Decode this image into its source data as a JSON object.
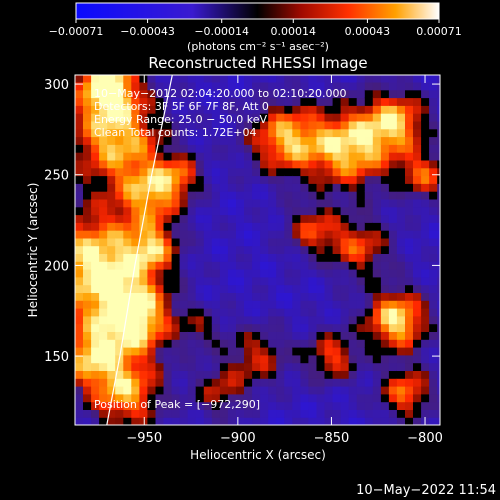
{
  "chart_data": {
    "type": "heatmap",
    "title": "Reconstructed RHESSI Image",
    "xlabel": "Heliocentric X (arcsec)",
    "ylabel": "Heliocentric Y (arcsec)",
    "xlim": [
      -987,
      -792
    ],
    "ylim": [
      112,
      305
    ],
    "x_ticks": [
      -950,
      -900,
      -850,
      -800
    ],
    "x_tick_labels": [
      "−950",
      "−900",
      "−850",
      "−800"
    ],
    "y_ticks": [
      150,
      200,
      250,
      300
    ],
    "y_tick_labels": [
      "150",
      "200",
      "250",
      "300"
    ],
    "colorbar": {
      "min": -0.00071,
      "max": 0.00071,
      "ticks": [
        -0.00071,
        -0.00043,
        -0.00014,
        0.00014,
        0.00043,
        0.00071
      ],
      "tick_labels": [
        "−0.00071",
        "−0.00043",
        "−0.00014",
        "0.00014",
        "0.00043",
        "0.00071"
      ],
      "units_label": "(photons cm⁻² s⁻¹ asec⁻²)"
    },
    "annotations": [
      "10−May−2012 02:04:20.000 to 02:10:20.000",
      "Detectors: 3F 5F 6F 7F 8F, Att 0",
      "Energy Range: 25.0 − 50.0 keV",
      "Clean    Total counts: 1.72E+04"
    ],
    "peak_label": "Position of Peak = [−972,290]",
    "limb": [
      [
        -935,
        305
      ],
      [
        -946,
        250
      ],
      [
        -955,
        200
      ],
      [
        -963,
        150
      ],
      [
        -970,
        112
      ]
    ],
    "colors": {
      "background": "#000000",
      "text": "#ffffff",
      "negative": "#2a1ad0",
      "zero": "#000000",
      "positive_low": "#b02010",
      "positive_mid": "#ff7a00",
      "positive_high": "#ffffc0"
    }
  },
  "footer": {
    "timestamp": "10−May−2022 11:54"
  }
}
